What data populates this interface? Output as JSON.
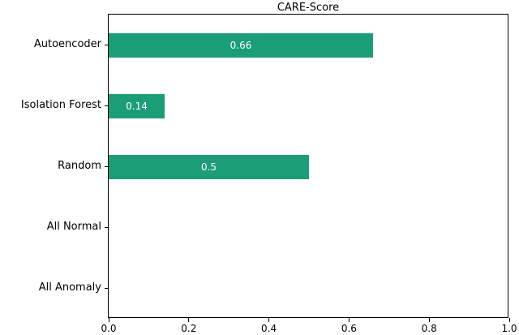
{
  "chart_data": {
    "type": "bar",
    "orientation": "horizontal",
    "title": "CARE-Score",
    "categories": [
      "Autoencoder",
      "Isolation Forest",
      "Random",
      "All Normal",
      "All Anomaly"
    ],
    "values": [
      0.66,
      0.14,
      0.5,
      0,
      0
    ],
    "value_labels": [
      "0.66",
      "0.14",
      "0.5",
      "",
      ""
    ],
    "xlabel": "",
    "ylabel": "",
    "xlim": [
      0.0,
      1.0
    ],
    "xticks": [
      "0.0",
      "0.2",
      "0.4",
      "0.6",
      "0.8",
      "1.0"
    ],
    "grid": false,
    "legend": "none",
    "bar_color": "#1b9e77",
    "value_label_color": "#ffffff",
    "axis_color": "#000000"
  }
}
